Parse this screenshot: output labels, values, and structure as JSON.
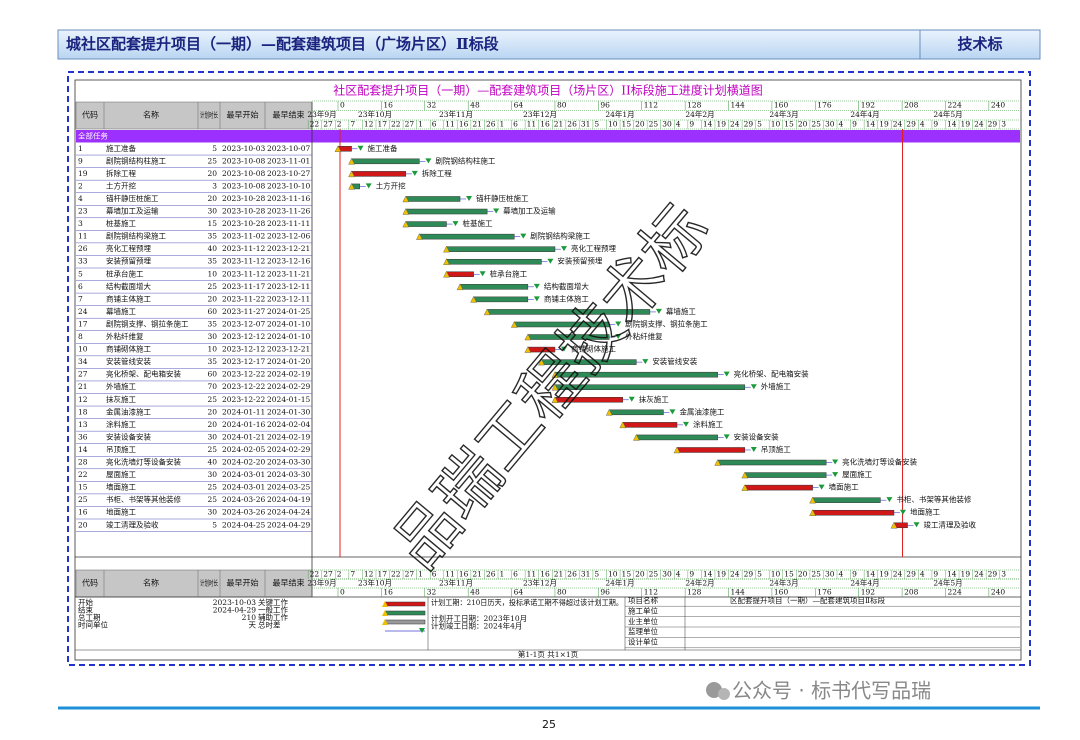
{
  "header": {
    "title": "城社区配套提升项目（一期）—配套建筑项目（广场片区）Ⅱ标段",
    "tag": "技术标"
  },
  "chart": {
    "title": "社区配套提升项目（一期）—配套建筑项目（场片区）II标段施工进度计划横道图",
    "columns": [
      "代码",
      "名称",
      "计划时长",
      "最早开始",
      "最早结束"
    ],
    "group": "全部任务",
    "scale_ticks": [
      0,
      16,
      32,
      48,
      64,
      80,
      96,
      112,
      128,
      144,
      160,
      176,
      192,
      208,
      224,
      240
    ],
    "months": [
      "23年9月",
      "23年10月",
      "23年11月",
      "23年12月",
      "24年1月",
      "24年2月",
      "24年3月",
      "24年4月",
      "24年5月"
    ],
    "days": [
      22,
      27,
      2,
      7,
      12,
      17,
      22,
      27,
      1,
      6,
      11,
      16,
      21,
      26,
      1,
      6,
      11,
      16,
      21,
      26,
      31,
      5,
      10,
      15,
      20,
      25,
      30,
      4,
      9,
      14,
      19,
      24,
      29,
      5,
      10,
      15,
      20,
      25,
      30,
      4,
      9,
      14,
      19,
      24,
      29,
      4,
      9,
      14,
      19,
      24,
      29,
      3
    ],
    "tasks": [
      {
        "code": 1,
        "name": "施工准备",
        "duration": 5,
        "start": "2023-10-03",
        "end": "2023-10-07",
        "critical": true
      },
      {
        "code": 9,
        "name": "剧院钢结构柱施工",
        "duration": 25,
        "start": "2023-10-08",
        "end": "2023-11-01",
        "critical": false
      },
      {
        "code": 19,
        "name": "拆除工程",
        "duration": 20,
        "start": "2023-10-08",
        "end": "2023-10-27",
        "critical": true
      },
      {
        "code": 2,
        "name": "土方开挖",
        "duration": 3,
        "start": "2023-10-08",
        "end": "2023-10-10",
        "critical": false
      },
      {
        "code": 4,
        "name": "锚杆静压桩施工",
        "duration": 20,
        "start": "2023-10-28",
        "end": "2023-11-16",
        "critical": false
      },
      {
        "code": 23,
        "name": "幕墙加工及运输",
        "duration": 30,
        "start": "2023-10-28",
        "end": "2023-11-26",
        "critical": false
      },
      {
        "code": 3,
        "name": "桩基施工",
        "duration": 15,
        "start": "2023-10-28",
        "end": "2023-11-11",
        "critical": false
      },
      {
        "code": 11,
        "name": "剧院钢结构梁施工",
        "duration": 35,
        "start": "2023-11-02",
        "end": "2023-12-06",
        "critical": false
      },
      {
        "code": 26,
        "name": "亮化工程预埋",
        "duration": 40,
        "start": "2023-11-12",
        "end": "2023-12-21",
        "critical": false
      },
      {
        "code": 33,
        "name": "安装预留预埋",
        "duration": 35,
        "start": "2023-11-12",
        "end": "2023-12-16",
        "critical": false
      },
      {
        "code": 5,
        "name": "桩承台施工",
        "duration": 10,
        "start": "2023-11-12",
        "end": "2023-11-21",
        "critical": true
      },
      {
        "code": 6,
        "name": "结构截面增大",
        "duration": 25,
        "start": "2023-11-17",
        "end": "2023-12-11",
        "critical": false
      },
      {
        "code": 7,
        "name": "商铺主体施工",
        "duration": 20,
        "start": "2023-11-22",
        "end": "2023-12-11",
        "critical": false
      },
      {
        "code": 24,
        "name": "幕墙施工",
        "duration": 60,
        "start": "2023-11-27",
        "end": "2024-01-25",
        "critical": false
      },
      {
        "code": 17,
        "name": "剧院钢支撑、钢拉条施工",
        "duration": 35,
        "start": "2023-12-07",
        "end": "2024-01-10",
        "critical": false
      },
      {
        "code": 8,
        "name": "外粘纤维复",
        "duration": 30,
        "start": "2023-12-12",
        "end": "2024-01-10",
        "critical": false
      },
      {
        "code": 10,
        "name": "商铺砌体施工",
        "duration": 10,
        "start": "2023-12-12",
        "end": "2023-12-21",
        "critical": true
      },
      {
        "code": 34,
        "name": "安装管线安装",
        "duration": 35,
        "start": "2023-12-17",
        "end": "2024-01-20",
        "critical": false
      },
      {
        "code": 27,
        "name": "亮化桥架、配电箱安装",
        "duration": 60,
        "start": "2023-12-22",
        "end": "2024-02-19",
        "critical": false
      },
      {
        "code": 21,
        "name": "外墙施工",
        "duration": 70,
        "start": "2023-12-22",
        "end": "2024-02-29",
        "critical": false
      },
      {
        "code": 12,
        "name": "抹灰施工",
        "duration": 25,
        "start": "2023-12-22",
        "end": "2024-01-15",
        "critical": true
      },
      {
        "code": 18,
        "name": "金属油漆施工",
        "duration": 20,
        "start": "2024-01-11",
        "end": "2024-01-30",
        "critical": false
      },
      {
        "code": 13,
        "name": "涂料施工",
        "duration": 20,
        "start": "2024-01-16",
        "end": "2024-02-04",
        "critical": true
      },
      {
        "code": 36,
        "name": "安装设备安装",
        "duration": 30,
        "start": "2024-01-21",
        "end": "2024-02-19",
        "critical": false
      },
      {
        "code": 14,
        "name": "吊顶施工",
        "duration": 25,
        "start": "2024-02-05",
        "end": "2024-02-29",
        "critical": true
      },
      {
        "code": 28,
        "name": "亮化洗墙灯等设备安装",
        "duration": 40,
        "start": "2024-02-20",
        "end": "2024-03-30",
        "critical": false
      },
      {
        "code": 22,
        "name": "屋面施工",
        "duration": 30,
        "start": "2024-03-01",
        "end": "2024-03-30",
        "critical": false
      },
      {
        "code": 15,
        "name": "墙面施工",
        "duration": 25,
        "start": "2024-03-01",
        "end": "2024-03-25",
        "critical": true
      },
      {
        "code": 25,
        "name": "书柜、书架等其他装修",
        "duration": 25,
        "start": "2024-03-26",
        "end": "2024-04-19",
        "critical": false
      },
      {
        "code": 16,
        "name": "地面施工",
        "duration": 30,
        "start": "2024-03-26",
        "end": "2024-04-24",
        "critical": true
      },
      {
        "code": 20,
        "name": "竣工清理及验收",
        "duration": 5,
        "start": "2024-04-25",
        "end": "2024-04-29",
        "critical": true
      }
    ]
  },
  "footer": {
    "info": [
      {
        "label": "开始",
        "value": "2023-10-03"
      },
      {
        "label": "结束",
        "value": "2024-04-29"
      },
      {
        "label": "总工期",
        "value": 210
      },
      {
        "label": "时间单位",
        "value": "天"
      }
    ],
    "legend": [
      "关键工作",
      "一般工作",
      "辅助工作",
      "总时差"
    ],
    "notes": [
      "计划工期：210日历天，投标承诺工期不得超过该计划工期。",
      "计划开工日期：2023年10月",
      "计划竣工日期：2024年4月"
    ],
    "project": [
      {
        "label": "项目名称",
        "value": "区配套提升项目（一期）—配套建筑项目Ⅱ标段"
      },
      {
        "label": "施工单位"
      },
      {
        "label": "业主单位"
      },
      {
        "label": "监理单位"
      },
      {
        "label": "设计单位"
      }
    ],
    "page": "第1-1页 共1×1页"
  },
  "watermark": "品瑞工程技术标",
  "wechat": "公众号 · 标书代写品瑞",
  "page_number": "25"
}
